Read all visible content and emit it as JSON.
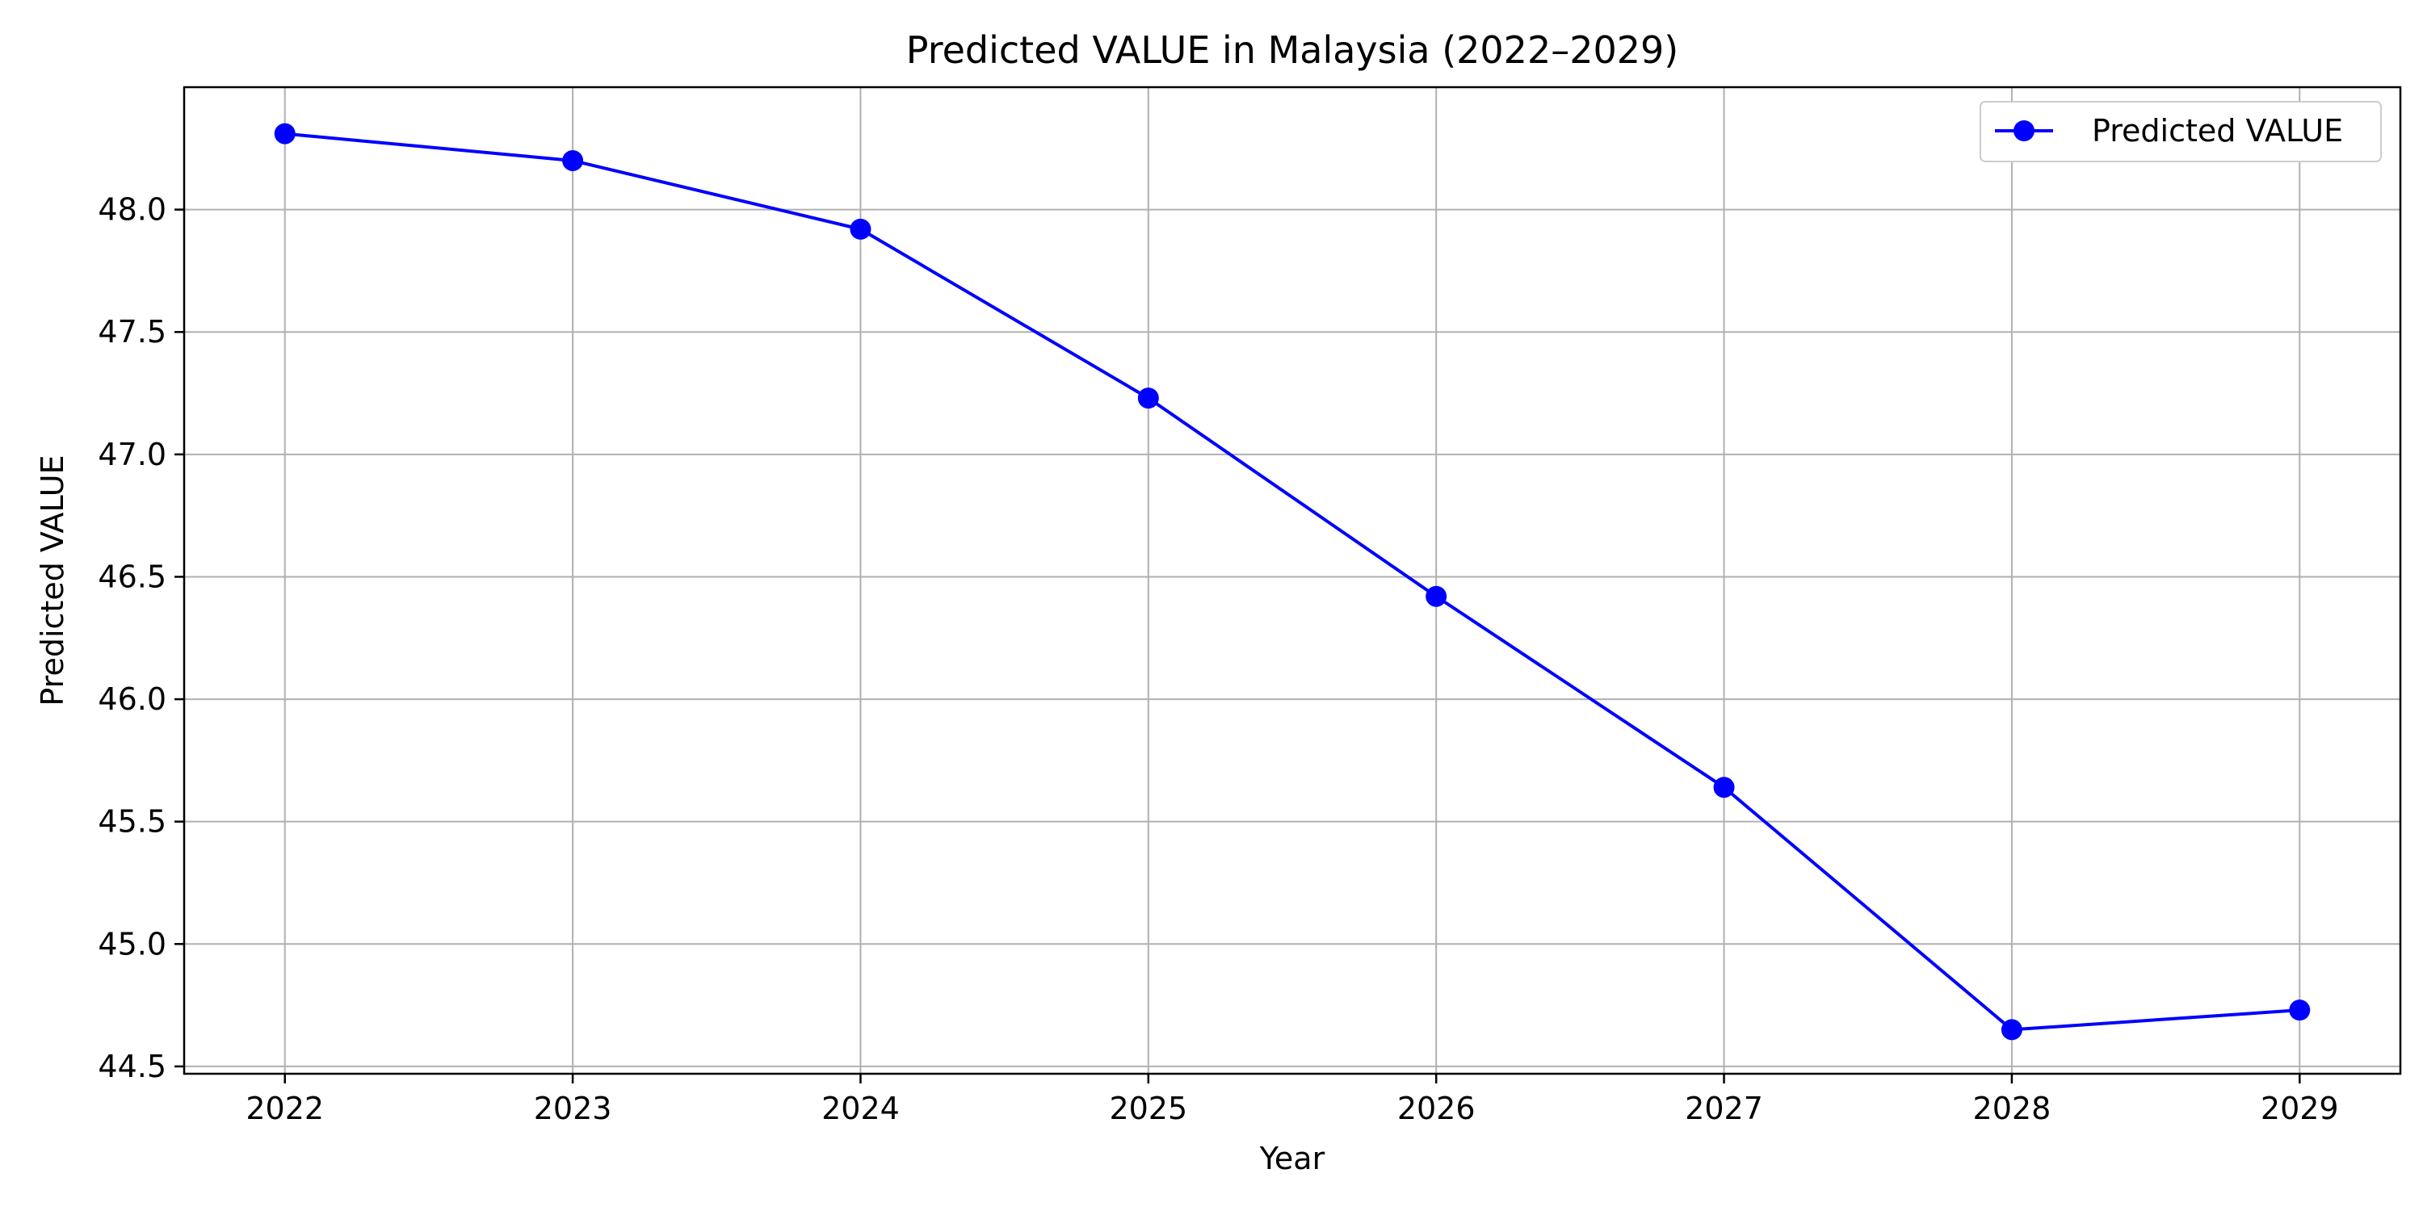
{
  "chart_data": {
    "type": "line",
    "title": "Predicted VALUE in Malaysia (2022–2029)",
    "xlabel": "Year",
    "ylabel": "Predicted VALUE",
    "x": [
      2022,
      2023,
      2024,
      2025,
      2026,
      2027,
      2028,
      2029
    ],
    "xticks": [
      "2022",
      "2023",
      "2024",
      "2025",
      "2026",
      "2027",
      "2028",
      "2029"
    ],
    "yticks": [
      "44.5",
      "45.0",
      "45.5",
      "46.0",
      "46.5",
      "47.0",
      "47.5",
      "48.0"
    ],
    "ylim": [
      44.47,
      48.5
    ],
    "xlim": [
      2021.65,
      2029.35
    ],
    "grid": true,
    "legend_position": "top-right",
    "series": [
      {
        "name": "Predicted VALUE",
        "color": "#0000ff",
        "marker": "circle",
        "values": [
          48.31,
          48.2,
          47.92,
          47.23,
          46.42,
          45.64,
          44.65,
          44.73
        ]
      }
    ]
  }
}
